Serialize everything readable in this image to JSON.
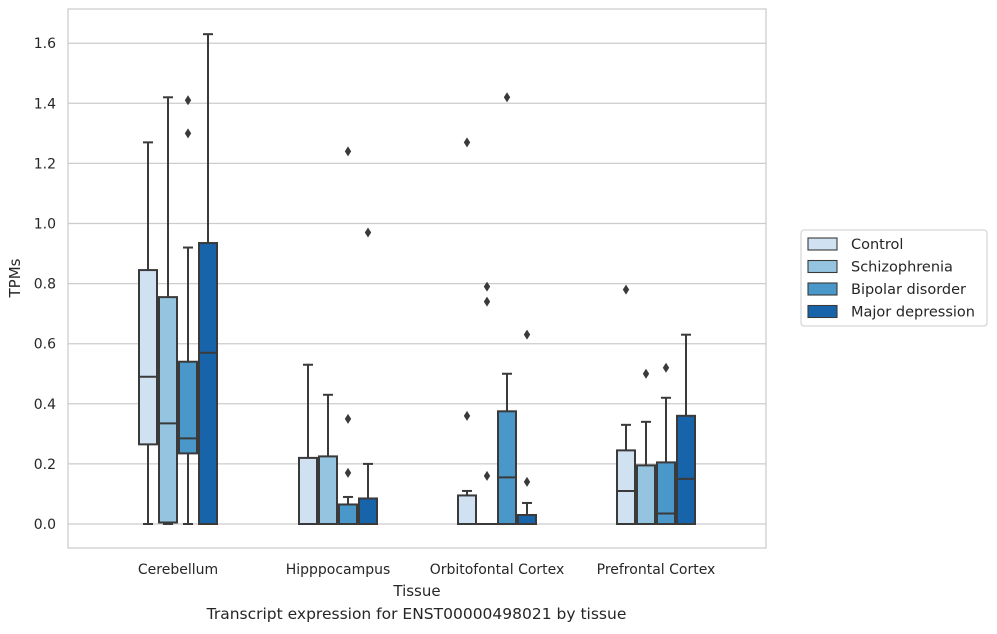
{
  "caption": "Transcript expression for ENST00000498021 by tissue",
  "chart_data": {
    "type": "box",
    "title": "",
    "xlabel": "Tissue",
    "ylabel": "TPMs",
    "ylim": [
      -0.08,
      1.72
    ],
    "yticks": [
      "0.0",
      "0.2",
      "0.4",
      "0.6",
      "0.8",
      "1.0",
      "1.2",
      "1.4",
      "1.6"
    ],
    "grid": "horizontal",
    "legend_position": "right",
    "categories": [
      "Cerebellum",
      "Hipppocampus",
      "Orbitofontal Cortex",
      "Prefrontal Cortex"
    ],
    "series": [
      {
        "name": "Control",
        "color": "#d0e1f2",
        "boxes": [
          {
            "whislo": 0.0,
            "q1": 0.265,
            "med": 0.49,
            "q3": 0.845,
            "whishi": 1.27,
            "fliers": []
          },
          {
            "whislo": 0.0,
            "q1": 0.0,
            "med": 0.0,
            "q3": 0.22,
            "whishi": 0.53,
            "fliers": []
          },
          {
            "whislo": 0.0,
            "q1": 0.0,
            "med": 0.0,
            "q3": 0.095,
            "whishi": 0.11,
            "fliers": [
              0.36,
              1.27
            ]
          },
          {
            "whislo": 0.0,
            "q1": 0.0,
            "med": 0.11,
            "q3": 0.245,
            "whishi": 0.33,
            "fliers": [
              0.78
            ]
          }
        ]
      },
      {
        "name": "Schizophrenia",
        "color": "#94c4df",
        "boxes": [
          {
            "whislo": 0.0,
            "q1": 0.005,
            "med": 0.335,
            "q3": 0.755,
            "whishi": 1.42,
            "fliers": []
          },
          {
            "whislo": 0.0,
            "q1": 0.0,
            "med": 0.0,
            "q3": 0.225,
            "whishi": 0.43,
            "fliers": []
          },
          {
            "whislo": 0.0,
            "q1": 0.0,
            "med": 0.0,
            "q3": 0.0,
            "whishi": 0.0,
            "fliers": [
              0.16,
              0.74,
              0.79
            ]
          },
          {
            "whislo": 0.0,
            "q1": 0.0,
            "med": 0.0,
            "q3": 0.195,
            "whishi": 0.34,
            "fliers": [
              0.5
            ]
          }
        ]
      },
      {
        "name": "Bipolar disorder",
        "color": "#4a98c9",
        "boxes": [
          {
            "whislo": 0.0,
            "q1": 0.235,
            "med": 0.285,
            "q3": 0.54,
            "whishi": 0.92,
            "fliers": [
              1.3,
              1.41
            ]
          },
          {
            "whislo": 0.0,
            "q1": 0.0,
            "med": 0.0,
            "q3": 0.065,
            "whishi": 0.09,
            "fliers": [
              0.17,
              0.35,
              1.24
            ]
          },
          {
            "whislo": 0.0,
            "q1": 0.0,
            "med": 0.155,
            "q3": 0.375,
            "whishi": 0.5,
            "fliers": [
              1.42
            ]
          },
          {
            "whislo": 0.0,
            "q1": 0.0,
            "med": 0.035,
            "q3": 0.205,
            "whishi": 0.42,
            "fliers": [
              0.52
            ]
          }
        ]
      },
      {
        "name": "Major depression",
        "color": "#1764ab",
        "boxes": [
          {
            "whislo": 0.0,
            "q1": 0.0,
            "med": 0.57,
            "q3": 0.935,
            "whishi": 1.63,
            "fliers": []
          },
          {
            "whislo": 0.0,
            "q1": 0.0,
            "med": 0.0,
            "q3": 0.085,
            "whishi": 0.2,
            "fliers": [
              0.97
            ]
          },
          {
            "whislo": 0.0,
            "q1": 0.0,
            "med": 0.0,
            "q3": 0.03,
            "whishi": 0.07,
            "fliers": [
              0.14,
              0.63
            ]
          },
          {
            "whislo": 0.0,
            "q1": 0.0,
            "med": 0.15,
            "q3": 0.36,
            "whishi": 0.63,
            "fliers": []
          }
        ]
      }
    ]
  }
}
